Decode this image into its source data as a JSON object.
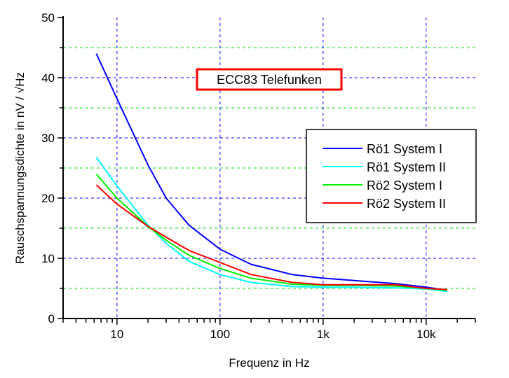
{
  "chart_data": {
    "type": "line",
    "title": "ECC83 Telefunken",
    "xlabel": "Frequenz in Hz",
    "ylabel": "Rauschspannungsdichte in nV / √Hz",
    "xscale": "log",
    "xlim": [
      3,
      30000
    ],
    "ylim": [
      0,
      50
    ],
    "xticks": [
      {
        "value": 10,
        "label": "10"
      },
      {
        "value": 100,
        "label": "100"
      },
      {
        "value": 1000,
        "label": "1k"
      },
      {
        "value": 10000,
        "label": "10k"
      }
    ],
    "yticks": [
      {
        "value": 0,
        "label": "0"
      },
      {
        "value": 10,
        "label": "10"
      },
      {
        "value": 20,
        "label": "20"
      },
      {
        "value": 30,
        "label": "30"
      },
      {
        "value": 40,
        "label": "40"
      },
      {
        "value": 50,
        "label": "50"
      }
    ],
    "grid": true,
    "legend_position": "right",
    "x": [
      6.3,
      10,
      20,
      30,
      50,
      100,
      200,
      500,
      1000,
      2000,
      5000,
      10000,
      16000
    ],
    "series": [
      {
        "name": "Rö1 System I",
        "color": "#0000ff",
        "values": [
          44,
          36.5,
          25.5,
          20,
          15.5,
          11.5,
          9,
          7.3,
          6.7,
          6.3,
          5.8,
          5.2,
          4.7
        ]
      },
      {
        "name": "Rö1 System II",
        "color": "#00ffff",
        "values": [
          26.8,
          22,
          15.5,
          12.5,
          9.5,
          7.3,
          6,
          5.3,
          5.2,
          5.2,
          5.1,
          4.9,
          4.5
        ]
      },
      {
        "name": "Rö2 System I",
        "color": "#00ee00",
        "values": [
          24,
          20,
          15.3,
          13,
          10.5,
          8.3,
          6.7,
          5.7,
          5.5,
          5.5,
          5.4,
          5,
          4.7
        ]
      },
      {
        "name": "Rö2 System II",
        "color": "#ff0000",
        "values": [
          22.2,
          19,
          15.3,
          13.5,
          11.3,
          9.3,
          7.3,
          6,
          5.6,
          5.6,
          5.6,
          5,
          4.8
        ]
      }
    ]
  }
}
